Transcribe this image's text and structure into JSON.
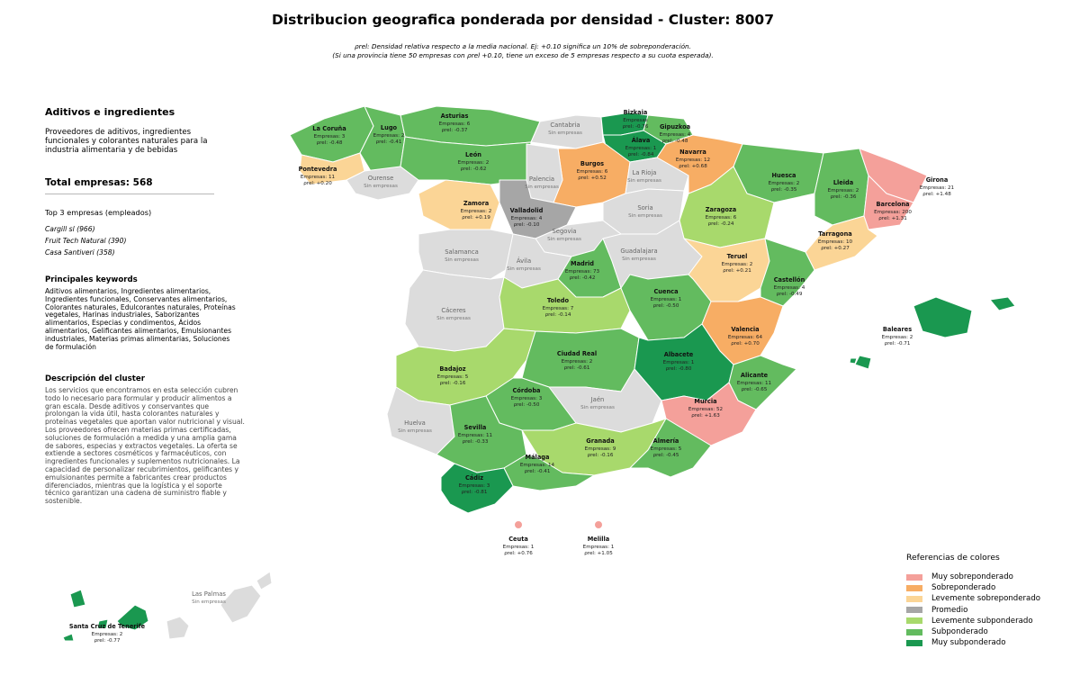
{
  "title": "Distribucion geografica ponderada por densidad - Cluster: 8007",
  "subtitle_line1": "ρrel: Densidad relativa respecto a la media nacional. Ej: +0.10 significa un 10% de sobreponderación.",
  "subtitle_line2": "(Si una provincia tiene 50 empresas con ρrel +0.10, tiene un exceso de 5 empresas respecto a su cuota esperada).",
  "sidebar": {
    "cluster_name": "Aditivos e ingredientes",
    "cluster_summary": "Proveedores de aditivos, ingredientes funcionales y colorantes naturales para la industria alimentaria y de bebidas",
    "total_label": "Total empresas: 568",
    "top3_title": "Top 3 empresas (empleados)",
    "top3": [
      "Cargill sl (966)",
      "Fruit Tech Natural (390)",
      "Casa Santiveri (358)"
    ],
    "keywords_title": "Principales keywords",
    "keywords": "Aditivos alimentarios, Ingredientes alimentarios, Ingredientes funcionales, Conservantes alimentarios, Colorantes naturales, Edulcorantes naturales, Proteínas vegetales, Harinas industriales, Saborizantes alimentarios, Especias y condimentos, Ácidos alimentarios, Gelificantes alimentarios, Emulsionantes industriales, Materias primas alimentarias, Soluciones de formulación",
    "description_title": "Descripción del cluster",
    "description": "Los servicios que encontramos en esta selección cubren todo lo necesario para formular y producir alimentos a gran escala. Desde aditivos y conservantes que prolongan la vida útil, hasta colorantes naturales y proteínas vegetales que aportan valor nutricional y visual. Los proveedores ofrecen materias primas certificadas, soluciones de formulación a medida y una amplia gama de sabores, especias y extractos vegetales. La oferta se extiende a sectores cosméticos y farmacéuticos, con ingredientes funcionales y suplementos nutricionales. La capacidad de personalizar recubrimientos, gelificantes y emulsionantes permite a fabricantes crear productos diferenciados, mientras que la logística y el soporte técnico garantizan una cadena de suministro fiable y sostenible."
  },
  "colors": {
    "muy_sobre": "#f4a09a",
    "sobre": "#f7ad64",
    "leve_sobre": "#fbd596",
    "promedio": "#a6a6a6",
    "leve_sub": "#a8d96c",
    "sub": "#63bb5f",
    "muy_sub": "#1a9850",
    "sin": "#dcdcdc"
  },
  "legend": {
    "title": "Referencias de colores",
    "items": [
      {
        "label": "Muy sobreponderado",
        "color": "#f4a09a"
      },
      {
        "label": "Sobreponderado",
        "color": "#f7ad64"
      },
      {
        "label": "Levemente sobreponderado",
        "color": "#fbd596"
      },
      {
        "label": "Promedio",
        "color": "#a6a6a6"
      },
      {
        "label": "Levemente subponderado",
        "color": "#a8d96c"
      },
      {
        "label": "Subponderado",
        "color": "#63bb5f"
      },
      {
        "label": "Muy subponderado",
        "color": "#1a9850"
      }
    ]
  },
  "provinces": [
    {
      "name": "Asturias",
      "empresas": "Empresas: 6",
      "rho": "ρrel: -0.37",
      "cat": "sub"
    },
    {
      "name": "Cantabria",
      "empresas": "Sin empresas",
      "rho": "",
      "cat": "sin"
    },
    {
      "name": "Bizkaia",
      "empresas": "Empresas",
      "rho": "ρrel: -0.76",
      "cat": "muy_sub"
    },
    {
      "name": "Gipuzkoa",
      "empresas": "Empresas: 4",
      "rho": "ρrel: -0.48",
      "cat": "sub"
    },
    {
      "name": "Álava",
      "empresas": "Empresas: 1",
      "rho": "ρrel: -0.84",
      "cat": "muy_sub"
    },
    {
      "name": "La Coruña",
      "empresas": "Empresas: 3",
      "rho": "ρrel: -0.48",
      "cat": "sub"
    },
    {
      "name": "Lugo",
      "empresas": "Empresas: 2",
      "rho": "ρrel: -0.41",
      "cat": "sub"
    },
    {
      "name": "Pontevedra",
      "empresas": "Empresas: 11",
      "rho": "ρrel: +0.20",
      "cat": "leve_sobre"
    },
    {
      "name": "Ourense",
      "empresas": "Sin empresas",
      "rho": "",
      "cat": "sin"
    },
    {
      "name": "León",
      "empresas": "Empresas: 2",
      "rho": "ρrel: -0.62",
      "cat": "sub"
    },
    {
      "name": "Burgos",
      "empresas": "Empresas: 6",
      "rho": "ρrel: +0.52",
      "cat": "sobre"
    },
    {
      "name": "Palencia",
      "empresas": "Sin empresas",
      "rho": "",
      "cat": "sin"
    },
    {
      "name": "Navarra",
      "empresas": "Empresas: 12",
      "rho": "ρrel: +0.68",
      "cat": "sobre"
    },
    {
      "name": "La Rioja",
      "empresas": "Sin empresas",
      "rho": "",
      "cat": "sin"
    },
    {
      "name": "Huesca",
      "empresas": "Empresas: 2",
      "rho": "ρrel: -0.35",
      "cat": "sub"
    },
    {
      "name": "Lleida",
      "empresas": "Empresas: 2",
      "rho": "ρrel: -0.36",
      "cat": "sub"
    },
    {
      "name": "Girona",
      "empresas": "Empresas: 21",
      "rho": "ρrel: +1.48",
      "cat": "muy_sobre"
    },
    {
      "name": "Barcelona",
      "empresas": "Empresas: 200",
      "rho": "ρrel: +1.31",
      "cat": "muy_sobre"
    },
    {
      "name": "Tarragona",
      "empresas": "Empresas: 10",
      "rho": "ρrel: +0.27",
      "cat": "leve_sobre"
    },
    {
      "name": "Zaragoza",
      "empresas": "Empresas: 6",
      "rho": "ρrel: -0.24",
      "cat": "leve_sub"
    },
    {
      "name": "Zamora",
      "empresas": "Empresas: 2",
      "rho": "ρrel: +0.19",
      "cat": "leve_sobre"
    },
    {
      "name": "Valladolid",
      "empresas": "Empresas: 4",
      "rho": "ρrel: -0.10",
      "cat": "promedio"
    },
    {
      "name": "Soria",
      "empresas": "Sin empresas",
      "rho": "",
      "cat": "sin"
    },
    {
      "name": "Segovia",
      "empresas": "Sin empresas",
      "rho": "",
      "cat": "sin"
    },
    {
      "name": "Salamanca",
      "empresas": "Sin empresas",
      "rho": "",
      "cat": "sin"
    },
    {
      "name": "Ávila",
      "empresas": "Sin empresas",
      "rho": "",
      "cat": "sin"
    },
    {
      "name": "Madrid",
      "empresas": "Empresas: 73",
      "rho": "ρrel: -0.42",
      "cat": "sub"
    },
    {
      "name": "Guadalajara",
      "empresas": "Sin empresas",
      "rho": "",
      "cat": "sin"
    },
    {
      "name": "Teruel",
      "empresas": "Empresas: 2",
      "rho": "ρrel: +0.21",
      "cat": "leve_sobre"
    },
    {
      "name": "Castellón",
      "empresas": "Empresas: 4",
      "rho": "ρrel: -0.49",
      "cat": "sub"
    },
    {
      "name": "Cáceres",
      "empresas": "Sin empresas",
      "rho": "",
      "cat": "sin"
    },
    {
      "name": "Toledo",
      "empresas": "Empresas: 7",
      "rho": "ρrel: -0.14",
      "cat": "leve_sub"
    },
    {
      "name": "Cuenca",
      "empresas": "Empresas: 1",
      "rho": "ρrel: -0.50",
      "cat": "sub"
    },
    {
      "name": "Valencia",
      "empresas": "Empresas: 64",
      "rho": "ρrel: +0.70",
      "cat": "sobre"
    },
    {
      "name": "Baleares",
      "empresas": "Empresas: 2",
      "rho": "ρrel: -0.71",
      "cat": "muy_sub"
    },
    {
      "name": "Badajoz",
      "empresas": "Empresas: 5",
      "rho": "ρrel: -0.16",
      "cat": "leve_sub"
    },
    {
      "name": "Ciudad Real",
      "empresas": "Empresas: 2",
      "rho": "ρrel: -0.61",
      "cat": "sub"
    },
    {
      "name": "Albacete",
      "empresas": "Empresas: 1",
      "rho": "ρrel: -0.80",
      "cat": "muy_sub"
    },
    {
      "name": "Alicante",
      "empresas": "Empresas: 11",
      "rho": "ρrel: -0.65",
      "cat": "sub"
    },
    {
      "name": "Córdoba",
      "empresas": "Empresas: 3",
      "rho": "ρrel: -0.50",
      "cat": "sub"
    },
    {
      "name": "Jaén",
      "empresas": "Sin empresas",
      "rho": "",
      "cat": "sin"
    },
    {
      "name": "Murcia",
      "empresas": "Empresas: 52",
      "rho": "ρrel: +1.63",
      "cat": "muy_sobre"
    },
    {
      "name": "Huelva",
      "empresas": "Sin empresas",
      "rho": "",
      "cat": "sin"
    },
    {
      "name": "Sevilla",
      "empresas": "Empresas: 11",
      "rho": "ρrel: -0.33",
      "cat": "sub"
    },
    {
      "name": "Granada",
      "empresas": "Empresas: 9",
      "rho": "ρrel: -0.16",
      "cat": "leve_sub"
    },
    {
      "name": "Almería",
      "empresas": "Empresas: 5",
      "rho": "ρrel: -0.45",
      "cat": "sub"
    },
    {
      "name": "Málaga",
      "empresas": "Empresas: 14",
      "rho": "ρrel: -0.41",
      "cat": "sub"
    },
    {
      "name": "Cádiz",
      "empresas": "Empresas: 3",
      "rho": "ρrel: -0.81",
      "cat": "muy_sub"
    },
    {
      "name": "Ceuta",
      "empresas": "Empresas: 1",
      "rho": "ρrel: +0.76",
      "cat": "muy_sobre"
    },
    {
      "name": "Melilla",
      "empresas": "Empresas: 1",
      "rho": "ρrel: +1.05",
      "cat": "muy_sobre"
    },
    {
      "name": "Las Palmas",
      "empresas": "Sin empresas",
      "rho": "",
      "cat": "sin"
    },
    {
      "name": "Santa Cruz de Tenerife",
      "empresas": "Empresas: 2",
      "rho": "ρrel: -0.77",
      "cat": "muy_sub"
    }
  ]
}
